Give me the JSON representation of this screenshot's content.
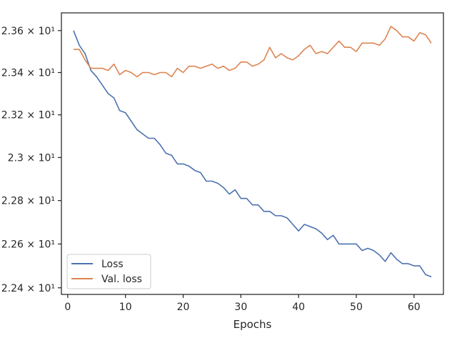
{
  "chart_data": {
    "type": "line",
    "title": "",
    "xlabel": "Epochs",
    "ylabel": "",
    "yscale": "log",
    "xlim": [
      -1.1,
      65.1
    ],
    "ylim": [
      22.37,
      23.685
    ],
    "grid": false,
    "legend_position": "lower-left",
    "x_ticks": [
      {
        "value": 0,
        "label": "0"
      },
      {
        "value": 10,
        "label": "10"
      },
      {
        "value": 20,
        "label": "20"
      },
      {
        "value": 30,
        "label": "30"
      },
      {
        "value": 40,
        "label": "40"
      },
      {
        "value": 50,
        "label": "50"
      },
      {
        "value": 60,
        "label": "60"
      }
    ],
    "y_ticks": [
      {
        "value": 23.6,
        "label": "2.36 × 10¹"
      },
      {
        "value": 23.4,
        "label": "2.34 × 10¹"
      },
      {
        "value": 23.2,
        "label": "2.32 × 10¹"
      },
      {
        "value": 23.0,
        "label": "2.3 × 10¹"
      },
      {
        "value": 22.8,
        "label": "2.28 × 10¹"
      },
      {
        "value": 22.6,
        "label": "2.26 × 10¹"
      },
      {
        "value": 22.4,
        "label": "2.24 × 10¹"
      }
    ],
    "series": [
      {
        "name": "Loss",
        "color": "#4c72b0",
        "x": [
          1,
          2,
          3,
          4,
          5,
          6,
          7,
          8,
          9,
          10,
          11,
          12,
          13,
          14,
          15,
          16,
          17,
          18,
          19,
          20,
          21,
          22,
          23,
          24,
          25,
          26,
          27,
          28,
          29,
          30,
          31,
          32,
          33,
          34,
          35,
          36,
          37,
          38,
          39,
          40,
          41,
          42,
          43,
          44,
          45,
          46,
          47,
          48,
          49,
          50,
          51,
          52,
          53,
          54,
          55,
          56,
          57,
          58,
          59,
          60,
          61,
          62,
          63
        ],
        "values": [
          23.6,
          23.53,
          23.49,
          23.41,
          23.38,
          23.34,
          23.3,
          23.28,
          23.22,
          23.21,
          23.17,
          23.13,
          23.11,
          23.09,
          23.09,
          23.06,
          23.02,
          23.01,
          22.97,
          22.97,
          22.96,
          22.94,
          22.93,
          22.89,
          22.89,
          22.88,
          22.86,
          22.83,
          22.85,
          22.81,
          22.81,
          22.78,
          22.78,
          22.75,
          22.75,
          22.73,
          22.73,
          22.72,
          22.69,
          22.66,
          22.69,
          22.68,
          22.67,
          22.65,
          22.62,
          22.64,
          22.6,
          22.6,
          22.6,
          22.6,
          22.57,
          22.58,
          22.57,
          22.55,
          22.52,
          22.56,
          22.53,
          22.51,
          22.51,
          22.5,
          22.5,
          22.46,
          22.45
        ]
      },
      {
        "name": "Val. loss",
        "color": "#dd8452",
        "x": [
          1,
          2,
          3,
          4,
          5,
          6,
          7,
          8,
          9,
          10,
          11,
          12,
          13,
          14,
          15,
          16,
          17,
          18,
          19,
          20,
          21,
          22,
          23,
          24,
          25,
          26,
          27,
          28,
          29,
          30,
          31,
          32,
          33,
          34,
          35,
          36,
          37,
          38,
          39,
          40,
          41,
          42,
          43,
          44,
          45,
          46,
          47,
          48,
          49,
          50,
          51,
          52,
          53,
          54,
          55,
          56,
          57,
          58,
          59,
          60,
          61,
          62,
          63
        ],
        "values": [
          23.51,
          23.51,
          23.46,
          23.42,
          23.42,
          23.42,
          23.41,
          23.44,
          23.39,
          23.41,
          23.4,
          23.38,
          23.4,
          23.4,
          23.39,
          23.4,
          23.4,
          23.38,
          23.42,
          23.4,
          23.43,
          23.43,
          23.42,
          23.43,
          23.44,
          23.42,
          23.43,
          23.41,
          23.42,
          23.45,
          23.45,
          23.43,
          23.44,
          23.46,
          23.52,
          23.47,
          23.49,
          23.47,
          23.46,
          23.48,
          23.51,
          23.53,
          23.49,
          23.5,
          23.49,
          23.52,
          23.55,
          23.52,
          23.52,
          23.5,
          23.54,
          23.54,
          23.54,
          23.53,
          23.56,
          23.62,
          23.6,
          23.57,
          23.57,
          23.55,
          23.59,
          23.58,
          23.54
        ]
      }
    ]
  }
}
